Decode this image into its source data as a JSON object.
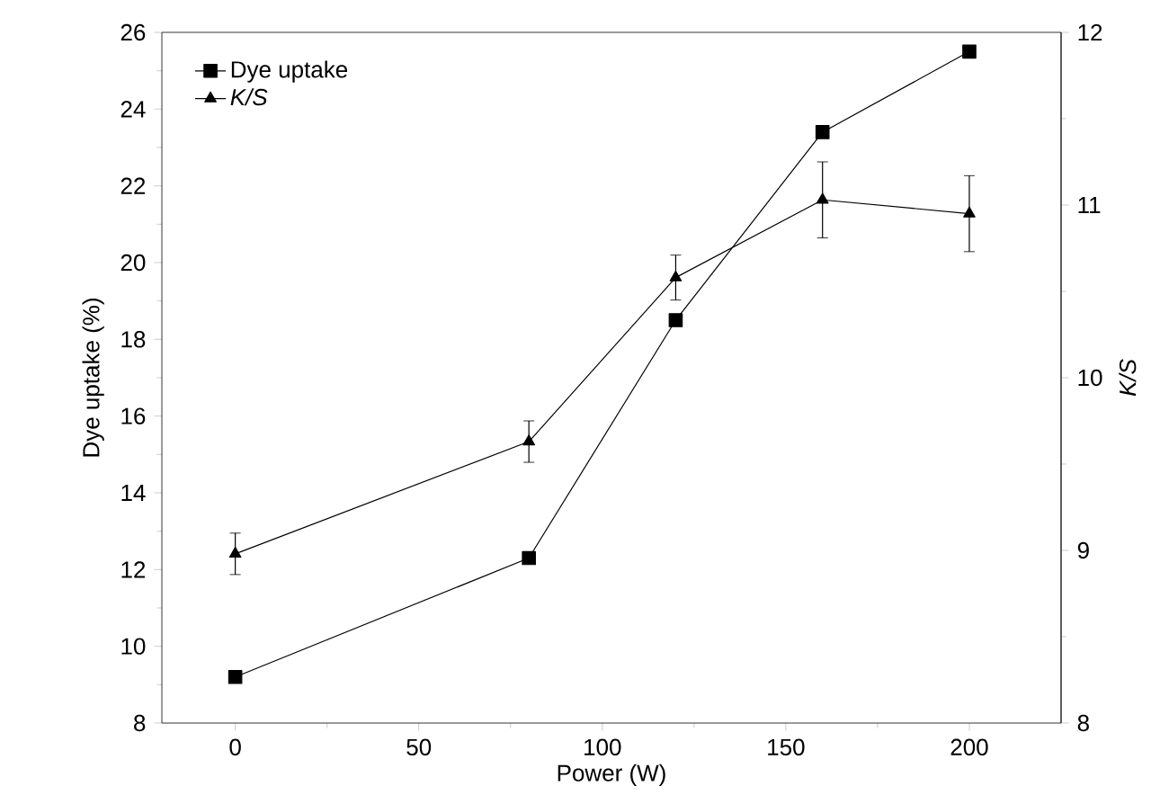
{
  "chart_data": {
    "type": "line",
    "xlabel": "Power (W)",
    "ylabel": "Dye uptake (%)",
    "y2label": "K/S",
    "x": [
      0,
      80,
      120,
      160,
      200
    ],
    "xlim": [
      -20,
      225
    ],
    "xticks": [
      0,
      50,
      100,
      150,
      200
    ],
    "ylim": [
      8,
      26
    ],
    "yticks": [
      8,
      10,
      12,
      14,
      16,
      18,
      20,
      22,
      24,
      26
    ],
    "y2lim": [
      8,
      12
    ],
    "y2ticks": [
      8,
      9,
      10,
      11,
      12
    ],
    "legend": "top left",
    "series": [
      {
        "name": "Dye uptake",
        "color": "#000000",
        "marker": "square",
        "line_style": "solid",
        "values": [
          9.2,
          12.3,
          18.5,
          23.4,
          25.5
        ]
      },
      {
        "name": "K/S",
        "color": "#000000",
        "marker": "triangle",
        "line_style": "solid",
        "axis": "y2",
        "values": [
          8.98,
          9.63,
          10.58,
          11.03,
          10.95
        ],
        "errors": [
          0.12,
          0.12,
          0.13,
          0.22,
          0.22
        ]
      }
    ]
  }
}
